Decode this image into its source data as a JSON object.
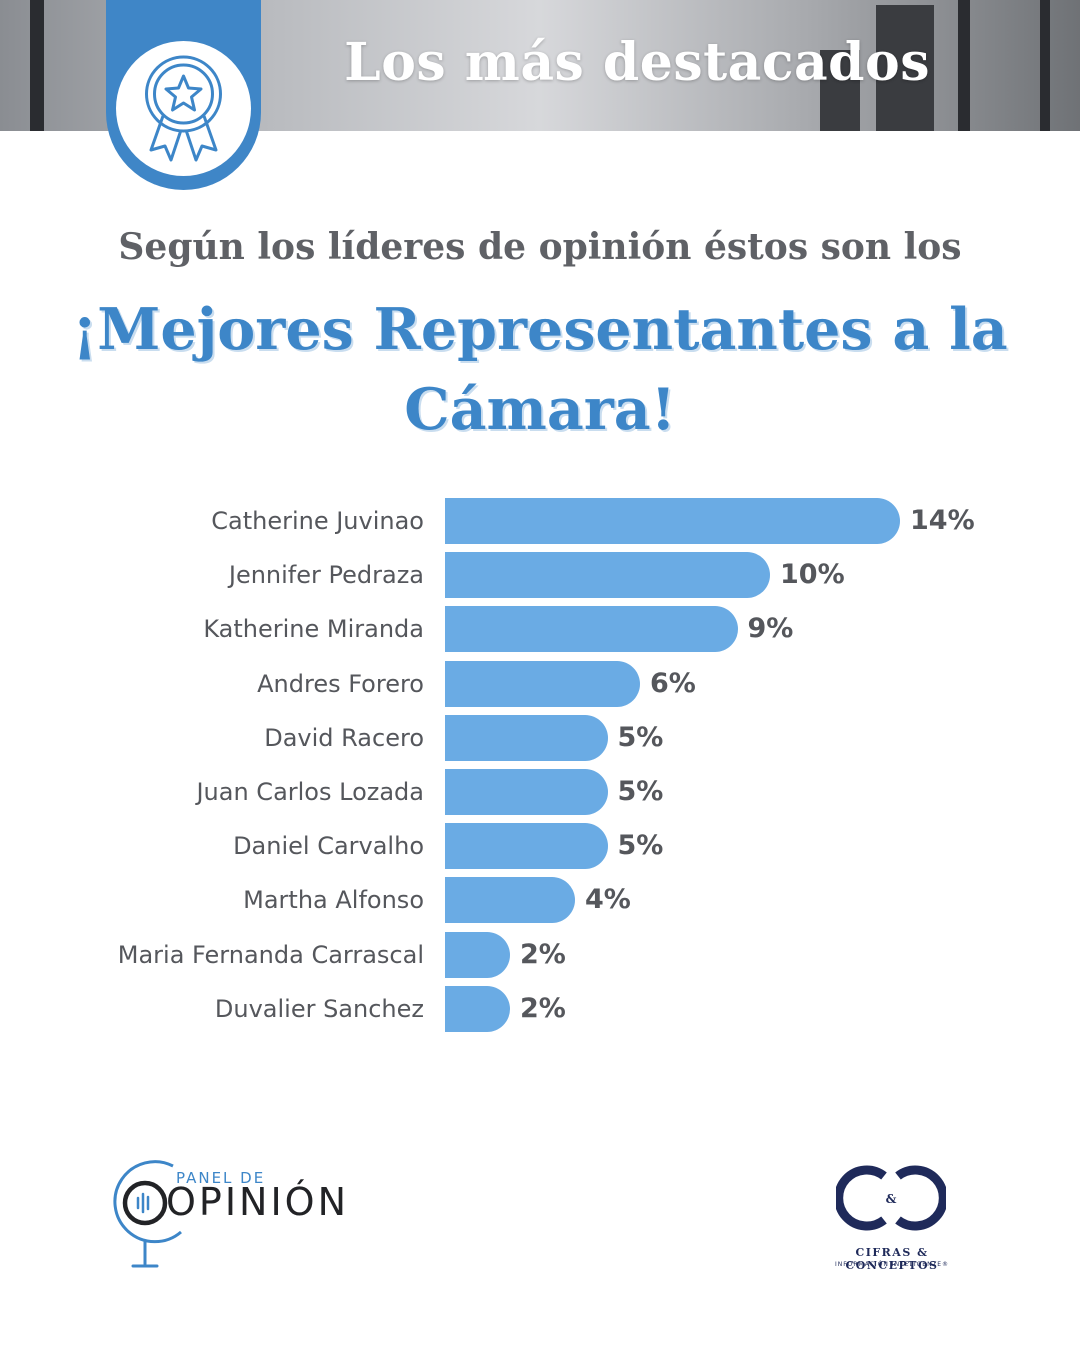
{
  "header": {
    "title": "Los más destacados",
    "badge_icon": "award-ribbon-icon"
  },
  "headline": {
    "subtitle": "Según los líderes de opinión éstos son los",
    "title": "¡Mejores Representantes a la Cámara!"
  },
  "chart_data": {
    "type": "bar",
    "orientation": "horizontal",
    "categories": [
      "Catherine Juvinao",
      "Jennifer Pedraza",
      "Katherine Miranda",
      "Andres Forero",
      "David Racero",
      "Juan Carlos Lozada",
      "Daniel Carvalho",
      "Martha Alfonso",
      "Maria Fernanda Carrascal",
      "Duvalier Sanchez"
    ],
    "values": [
      14,
      10,
      9,
      6,
      5,
      5,
      5,
      4,
      2,
      2
    ],
    "value_labels": [
      "14%",
      "10%",
      "9%",
      "6%",
      "5%",
      "5%",
      "5%",
      "4%",
      "2%",
      "2%"
    ],
    "unit": "%",
    "xlim": [
      0,
      14
    ],
    "grid": false,
    "bar_color": "#6aabe4"
  },
  "footer": {
    "left_logo": {
      "small_text": "PANEL DE",
      "big_text": "OPINIÓN",
      "icon": "microphone-logo-icon"
    },
    "right_logo": {
      "mark": "C&C",
      "name": "CIFRAS & CONCEPTOS",
      "tagline": "INFORMACIÓN INTELIGENTE®"
    }
  },
  "colors": {
    "accent": "#3d86c8",
    "bar": "#6aabe4",
    "text": "#55575c"
  }
}
